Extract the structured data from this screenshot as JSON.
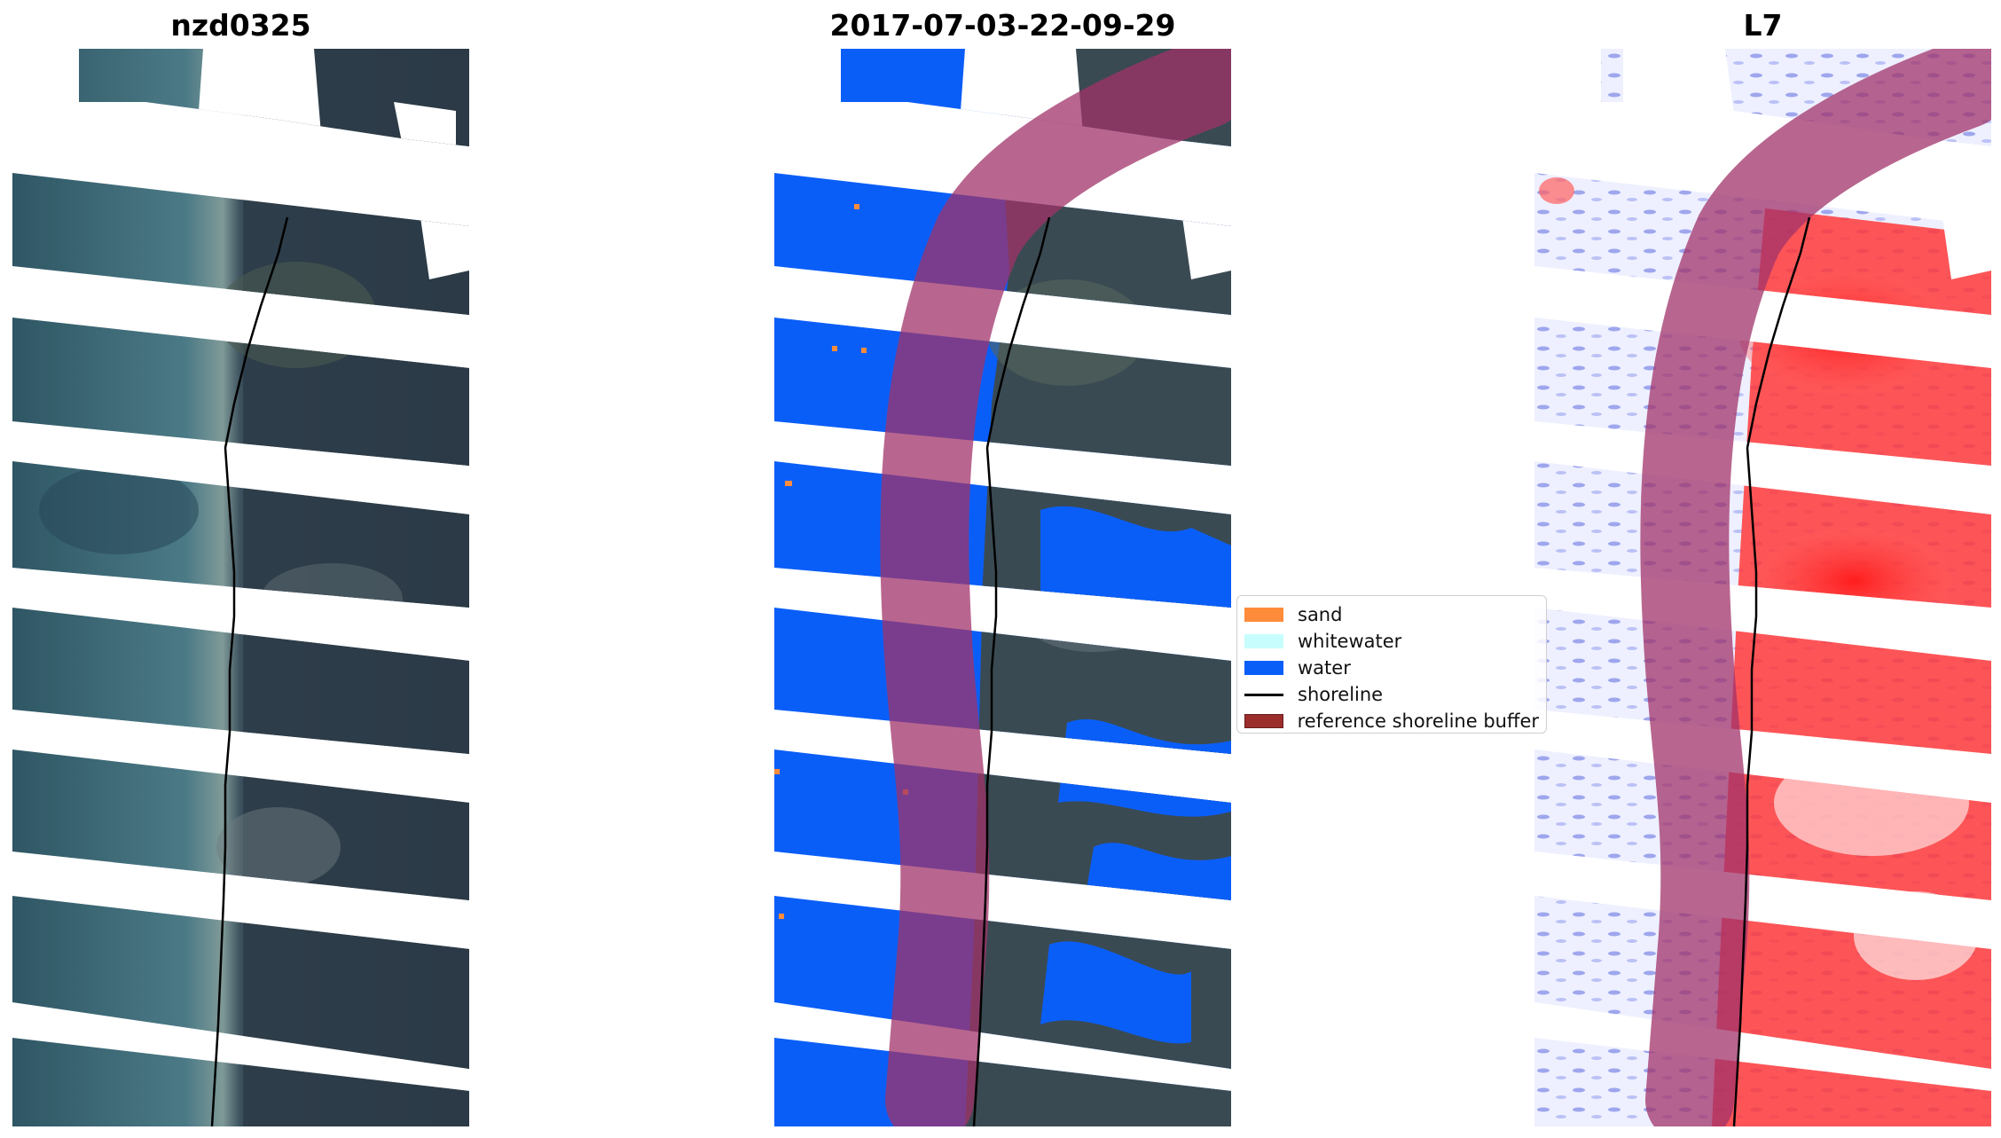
{
  "panels": {
    "left_title": "nzd0325",
    "middle_title": "2017-07-03-22-09-29",
    "right_title": "L7"
  },
  "legend": {
    "items": [
      {
        "label": "sand",
        "color": "#ff8c3a",
        "kind": "patch"
      },
      {
        "label": "whitewater",
        "color": "#c8fdfd",
        "kind": "patch"
      },
      {
        "label": "water",
        "color": "#0a5ef8",
        "kind": "patch"
      },
      {
        "label": "shoreline",
        "color": "#000000",
        "kind": "line"
      },
      {
        "label": "reference shoreline buffer",
        "color": "#9b2d2d",
        "kind": "patch"
      }
    ]
  },
  "colors": {
    "water_class": "#0a5ef8",
    "sand_class": "#ff8c3a",
    "buffer_overlay": "#a0336a",
    "ocean_rgb": "#3c6272",
    "land_rgb": "#2f3f4a",
    "index_positive": "#ff2020",
    "index_negative": "#3a4cd8"
  }
}
